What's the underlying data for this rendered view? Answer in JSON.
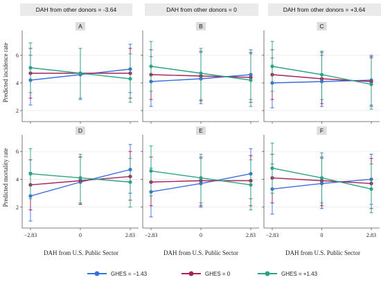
{
  "column_headers": [
    "DAH from other donors = -3.64",
    "DAH from other donors = 0",
    "DAH from other donors = +3.64"
  ],
  "y_labels": {
    "top": "Predicted incidence rate",
    "bottom": "Predicted mortality rate"
  },
  "x_label": "DAH from U.S. Public Sector",
  "legend": [
    {
      "label": "GHES = −1.43",
      "color": "#3a6fe0"
    },
    {
      "label": "GHES = 0",
      "color": "#a3245a"
    },
    {
      "label": "GHES = +1.43",
      "color": "#2ba486"
    }
  ],
  "chart_data": [
    {
      "type": "line",
      "title": "A",
      "x": [
        -2.83,
        0,
        2.83
      ],
      "x_tick_labels": [
        "−2.83",
        "0",
        "2.83"
      ],
      "ylim": [
        1.2,
        7.8
      ],
      "y_ticks": [
        2,
        4,
        6
      ],
      "series": [
        {
          "name": "GHES = −1.43",
          "values": [
            4.2,
            4.6,
            5.0
          ],
          "lower": [
            2.4,
            2.8,
            3.3
          ],
          "upper": [
            6.0,
            6.5,
            6.8
          ]
        },
        {
          "name": "GHES = 0",
          "values": [
            4.7,
            4.7,
            4.7
          ],
          "lower": [
            2.9,
            2.9,
            2.9
          ],
          "upper": [
            6.5,
            6.5,
            6.5
          ]
        },
        {
          "name": "GHES = +1.43",
          "values": [
            5.1,
            4.7,
            4.3
          ],
          "lower": [
            3.3,
            2.9,
            2.6
          ],
          "upper": [
            6.9,
            6.5,
            6.1
          ]
        }
      ]
    },
    {
      "type": "line",
      "title": "B",
      "x": [
        -2.83,
        0,
        2.83
      ],
      "x_tick_labels": [
        "−2.83",
        "0",
        "2.83"
      ],
      "ylim": [
        1.2,
        7.8
      ],
      "y_ticks": [
        2,
        4,
        6
      ],
      "series": [
        {
          "name": "GHES = −1.43",
          "values": [
            4.1,
            4.3,
            4.6
          ],
          "lower": [
            2.3,
            2.5,
            2.8
          ],
          "upper": [
            5.9,
            6.2,
            6.4
          ]
        },
        {
          "name": "GHES = 0",
          "values": [
            4.6,
            4.5,
            4.4
          ],
          "lower": [
            2.8,
            2.7,
            2.6
          ],
          "upper": [
            6.4,
            6.3,
            6.2
          ]
        },
        {
          "name": "GHES = +1.43",
          "values": [
            5.2,
            4.7,
            4.2
          ],
          "lower": [
            3.4,
            2.8,
            2.3
          ],
          "upper": [
            7.0,
            6.5,
            6.1
          ]
        }
      ]
    },
    {
      "type": "line",
      "title": "C",
      "x": [
        -2.83,
        0,
        2.83
      ],
      "x_tick_labels": [
        "−2.83",
        "0",
        "2.83"
      ],
      "ylim": [
        1.2,
        7.8
      ],
      "y_ticks": [
        2,
        4,
        6
      ],
      "series": [
        {
          "name": "GHES = −1.43",
          "values": [
            4.0,
            4.1,
            4.2
          ],
          "lower": [
            2.2,
            2.3,
            2.4
          ],
          "upper": [
            5.8,
            6.0,
            6.0
          ]
        },
        {
          "name": "GHES = 0",
          "values": [
            4.6,
            4.3,
            4.1
          ],
          "lower": [
            2.8,
            2.5,
            2.3
          ],
          "upper": [
            6.4,
            6.2,
            5.9
          ]
        },
        {
          "name": "GHES = +1.43",
          "values": [
            5.2,
            4.6,
            3.9
          ],
          "lower": [
            3.4,
            2.8,
            2.1
          ],
          "upper": [
            7.0,
            6.3,
            5.8
          ]
        }
      ]
    },
    {
      "type": "line",
      "title": "D",
      "x": [
        -2.83,
        0,
        2.83
      ],
      "x_tick_labels": [
        "−2.83",
        "0",
        "2.83"
      ],
      "ylim": [
        0.5,
        7.2
      ],
      "y_ticks": [
        2,
        4,
        6
      ],
      "series": [
        {
          "name": "GHES = −1.43",
          "values": [
            2.8,
            3.8,
            4.7
          ],
          "lower": [
            1.0,
            2.2,
            3.0
          ],
          "upper": [
            4.5,
            5.6,
            6.5
          ]
        },
        {
          "name": "GHES = 0",
          "values": [
            3.6,
            3.9,
            4.2
          ],
          "lower": [
            1.8,
            2.2,
            2.5
          ],
          "upper": [
            5.4,
            5.6,
            6.0
          ]
        },
        {
          "name": "GHES = +1.43",
          "values": [
            4.4,
            4.1,
            3.8
          ],
          "lower": [
            2.6,
            2.3,
            2.0
          ],
          "upper": [
            6.2,
            5.8,
            5.5
          ]
        }
      ]
    },
    {
      "type": "line",
      "title": "E",
      "x": [
        -2.83,
        0,
        2.83
      ],
      "x_tick_labels": [
        "−2.83",
        "0",
        "2.83"
      ],
      "ylim": [
        0.5,
        7.2
      ],
      "y_ticks": [
        2,
        4,
        6
      ],
      "series": [
        {
          "name": "GHES = −1.43",
          "values": [
            3.1,
            3.7,
            4.4
          ],
          "lower": [
            1.3,
            2.0,
            2.6
          ],
          "upper": [
            4.8,
            5.5,
            6.2
          ]
        },
        {
          "name": "GHES = 0",
          "values": [
            3.8,
            3.9,
            3.9
          ],
          "lower": [
            2.1,
            2.1,
            2.1
          ],
          "upper": [
            5.6,
            5.6,
            5.7
          ]
        },
        {
          "name": "GHES = +1.43",
          "values": [
            4.6,
            4.1,
            3.6
          ],
          "lower": [
            2.8,
            2.3,
            1.8
          ],
          "upper": [
            6.4,
            5.8,
            5.4
          ]
        }
      ]
    },
    {
      "type": "line",
      "title": "F",
      "x": [
        -2.83,
        0,
        2.83
      ],
      "x_tick_labels": [
        "−2.83",
        "0",
        "2.83"
      ],
      "ylim": [
        0.5,
        7.2
      ],
      "y_ticks": [
        2,
        4,
        6
      ],
      "series": [
        {
          "name": "GHES = −1.43",
          "values": [
            3.3,
            3.7,
            4.0
          ],
          "lower": [
            1.5,
            1.9,
            2.2
          ],
          "upper": [
            5.1,
            5.5,
            5.8
          ]
        },
        {
          "name": "GHES = 0",
          "values": [
            4.1,
            3.9,
            3.7
          ],
          "lower": [
            2.3,
            2.1,
            1.9
          ],
          "upper": [
            5.8,
            5.6,
            5.5
          ]
        },
        {
          "name": "GHES = +1.43",
          "values": [
            4.8,
            4.1,
            3.3
          ],
          "lower": [
            3.0,
            2.3,
            1.6
          ],
          "upper": [
            6.6,
            5.9,
            5.1
          ]
        }
      ]
    }
  ]
}
